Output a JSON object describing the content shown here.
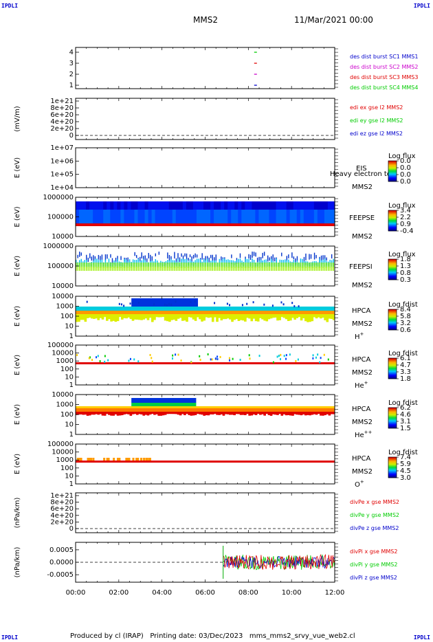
{
  "corner_marks": {
    "tl": "IPDLI",
    "tr": "IPDLI",
    "bl": "IPDLI",
    "br": "IPDLI"
  },
  "header": {
    "spacecraft": "MMS2",
    "date": "11/Mar/2021 00:00"
  },
  "footer": {
    "text": "Produced by cl (IRAP)   Printing date: 03/Dec/2023   mms_mms2_srvy_vue_web2.cl"
  },
  "x_axis": {
    "ticks": [
      "00:00",
      "02:00",
      "04:00",
      "06:00",
      "08:00",
      "10:00",
      "12:00"
    ]
  },
  "colors": {
    "blue": "#0000cc",
    "magenta": "#cc00cc",
    "red": "#e00000",
    "green": "#00cc00"
  },
  "chart_data": [
    {
      "type": "line",
      "id": "burst",
      "ylabel": "",
      "yticks": [
        "4",
        "3",
        "2",
        "1"
      ],
      "legend": [
        {
          "text": "des dist burst SC1 MMS1",
          "color": "#0000cc"
        },
        {
          "text": "des dist burst SC2 MMS2",
          "color": "#cc00cc"
        },
        {
          "text": "des dist burst SC3 MMS3",
          "color": "#e00000"
        },
        {
          "text": "des dist burst SC4 MMS4",
          "color": "#00cc00"
        }
      ],
      "series": [
        {
          "name": "SC1",
          "x": [
            "08:20"
          ],
          "y": [
            1
          ]
        },
        {
          "name": "SC2",
          "x": [
            "08:20"
          ],
          "y": [
            2
          ]
        },
        {
          "name": "SC3",
          "x": [
            "08:20"
          ],
          "y": [
            3
          ]
        },
        {
          "name": "SC4",
          "x": [
            "08:20"
          ],
          "y": [
            4
          ]
        }
      ]
    },
    {
      "type": "line",
      "id": "edi",
      "ylabel": "(mV/m)",
      "yticks": [
        "1e+21",
        "8e+20",
        "6e+20",
        "4e+20",
        "2e+20",
        "0"
      ],
      "legend": [
        {
          "text": "edi ex gse l2 MMS2",
          "color": "#e00000"
        },
        {
          "text": "edi ey gse l2 MMS2",
          "color": "#00cc00"
        },
        {
          "text": "edi ez gse l2 MMS2",
          "color": "#0000cc"
        }
      ]
    },
    {
      "type": "heatmap",
      "id": "eis",
      "ylabel": "E (eV)",
      "yticks": [
        "1e+07",
        "1e+06",
        "1e+05",
        "1e+04"
      ],
      "instrument": "EIS",
      "species": "Heavy electron te",
      "sc": "MMS2",
      "cbar_title": "Log flux",
      "cbar_ticks": [
        "0.0",
        "0.0",
        "0.0",
        "0.0"
      ]
    },
    {
      "type": "heatmap",
      "id": "feepse",
      "ylabel": "E (eV)",
      "yticks": [
        "1000000",
        "100000",
        "10000"
      ],
      "instrument": "FEEPSE",
      "sc": "MMS2",
      "cbar_title": "Log flux",
      "cbar_ticks": [
        "3.4",
        "2.2",
        "0.9",
        "-0.4"
      ]
    },
    {
      "type": "heatmap",
      "id": "feepsi",
      "ylabel": "E (eV)",
      "yticks": [
        "1000000",
        "100000",
        "10000"
      ],
      "instrument": "FEEPSI",
      "sc": "MMS2",
      "cbar_title": "Log flux",
      "cbar_ticks": [
        "1.8",
        "1.3",
        "0.8",
        "0.3"
      ]
    },
    {
      "type": "heatmap",
      "id": "hpca_h",
      "ylabel": "E (eV)",
      "yticks": [
        "10000",
        "1000",
        "100",
        "10",
        "1"
      ],
      "instrument": "HPCA",
      "sc": "MMS2",
      "species": "H",
      "species_sup": "+",
      "cbar_title": "Log fdist",
      "cbar_ticks": [
        "8.4",
        "5.8",
        "3.2",
        "0.6"
      ]
    },
    {
      "type": "heatmap",
      "id": "hpca_he",
      "ylabel": "E (eV)",
      "yticks": [
        "100000",
        "10000",
        "1000",
        "100",
        "10",
        "1"
      ],
      "instrument": "HPCA",
      "sc": "MMS2",
      "species": "He",
      "species_sup": "+",
      "cbar_title": "Log fdist",
      "cbar_ticks": [
        "6.1",
        "4.7",
        "3.3",
        "1.8"
      ]
    },
    {
      "type": "heatmap",
      "id": "hpca_hepp",
      "ylabel": "E (eV)",
      "yticks": [
        "10000",
        "1000",
        "100",
        "10",
        "1"
      ],
      "instrument": "HPCA",
      "sc": "MMS2",
      "species": "He",
      "species_sup": "++",
      "cbar_title": "Log fdist",
      "cbar_ticks": [
        "6.2",
        "4.6",
        "3.1",
        "1.5"
      ]
    },
    {
      "type": "heatmap",
      "id": "hpca_o",
      "ylabel": "E (eV)",
      "yticks": [
        "100000",
        "10000",
        "1000",
        "100",
        "10",
        "1"
      ],
      "instrument": "HPCA",
      "sc": "MMS2",
      "species": "O",
      "species_sup": "+",
      "cbar_title": "Log fdist",
      "cbar_ticks": [
        "7.4",
        "5.9",
        "4.5",
        "3.0"
      ]
    },
    {
      "type": "line",
      "id": "divpe",
      "ylabel": "(nPa/km)",
      "yticks": [
        "1e+21",
        "8e+20",
        "6e+20",
        "4e+20",
        "2e+20",
        "0"
      ],
      "legend": [
        {
          "text": "divPe x gse MMS2",
          "color": "#e00000"
        },
        {
          "text": "divPe y gse MMS2",
          "color": "#00cc00"
        },
        {
          "text": "divPe z gse MMS2",
          "color": "#0000cc"
        }
      ]
    },
    {
      "type": "line",
      "id": "divpi",
      "ylabel": "(nPa/km)",
      "yticks": [
        "0.0005",
        "0.0000",
        "-0.0005"
      ],
      "ylim": [
        -0.0008,
        0.0008
      ],
      "legend": [
        {
          "text": "divPi x gse MMS2",
          "color": "#e00000"
        },
        {
          "text": "divPi y gse MMS2",
          "color": "#00cc00"
        },
        {
          "text": "divPi z gse MMS2",
          "color": "#0000cc"
        }
      ],
      "data_start": "06:50",
      "data_end": "12:00",
      "amplitude": 0.0003
    }
  ]
}
